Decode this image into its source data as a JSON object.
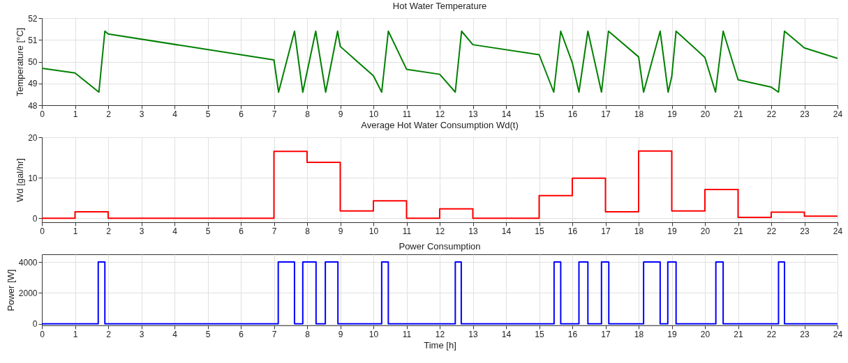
{
  "chart_data": [
    {
      "type": "line",
      "title": "Hot Water Temperature",
      "ylabel": "Temperature  [°C]",
      "xlim": [
        0,
        24
      ],
      "xticks": [
        0,
        1,
        2,
        3,
        4,
        5,
        6,
        7,
        8,
        9,
        10,
        11,
        12,
        13,
        14,
        15,
        16,
        17,
        18,
        19,
        20,
        21,
        22,
        23,
        24
      ],
      "ylim": [
        48,
        52
      ],
      "yticks": [
        48,
        49,
        50,
        51,
        52
      ],
      "grid": true,
      "series": [
        {
          "color": "#008000",
          "x": [
            0,
            1,
            1.72,
            1.9,
            2,
            7,
            7.14,
            7.62,
            7.87,
            8.26,
            8.56,
            8.92,
            9,
            10,
            10.25,
            10.45,
            11,
            12,
            12.47,
            12.66,
            13,
            15,
            15.44,
            15.65,
            16,
            16.2,
            16.47,
            16.88,
            17.09,
            18,
            18.15,
            18.65,
            18.89,
            19,
            19.13,
            20,
            20.32,
            20.55,
            21,
            22,
            22.22,
            22.4,
            23,
            24
          ],
          "values": [
            49.7,
            49.48,
            48.6,
            51.4,
            51.27,
            50.08,
            48.6,
            51.4,
            48.6,
            51.4,
            48.6,
            51.4,
            50.7,
            49.35,
            48.6,
            51.4,
            49.65,
            49.42,
            48.6,
            51.4,
            50.78,
            50.32,
            48.6,
            51.4,
            49.95,
            48.6,
            51.4,
            48.6,
            51.4,
            50.22,
            48.6,
            51.4,
            48.6,
            49.32,
            51.4,
            50.19,
            48.6,
            51.4,
            49.17,
            48.83,
            48.6,
            51.4,
            50.63,
            50.15
          ]
        }
      ]
    },
    {
      "type": "step",
      "title": "Average Hot Water Consumption Wd(t)",
      "ylabel": "Wd  [gal/hr]",
      "xlim": [
        0,
        24
      ],
      "xticks": [
        0,
        1,
        2,
        3,
        4,
        5,
        6,
        7,
        8,
        9,
        10,
        11,
        12,
        13,
        14,
        15,
        16,
        17,
        18,
        19,
        20,
        21,
        22,
        23,
        24
      ],
      "ylim": [
        -1,
        20
      ],
      "yticks": [
        0,
        10,
        20
      ],
      "grid": true,
      "series": [
        {
          "color": "#ff0000",
          "x": [
            0,
            1,
            2,
            3,
            4,
            5,
            6,
            7,
            8,
            9,
            10,
            11,
            12,
            13,
            14,
            15,
            16,
            17,
            18,
            19,
            20,
            21,
            22,
            23,
            24
          ],
          "values": [
            0,
            1.6,
            0,
            0,
            0,
            0,
            0,
            16.5,
            13.8,
            1.8,
            4.3,
            0,
            2.3,
            0,
            0,
            5.6,
            9.9,
            1.6,
            16.6,
            1.8,
            7.1,
            0.2,
            1.5,
            0.5,
            0.5
          ]
        }
      ]
    },
    {
      "type": "step",
      "title": "Power Consumption",
      "xlabel": "Time  [h]",
      "ylabel": "Power  [W]",
      "xlim": [
        0,
        24
      ],
      "xticks": [
        0,
        1,
        2,
        3,
        4,
        5,
        6,
        7,
        8,
        9,
        10,
        11,
        12,
        13,
        14,
        15,
        16,
        17,
        18,
        19,
        20,
        21,
        22,
        23,
        24
      ],
      "ylim": [
        -100,
        4500
      ],
      "yticks": [
        0,
        2000,
        4000
      ],
      "grid": true,
      "series": [
        {
          "color": "#0000ff",
          "x": [
            0,
            1.7,
            1.9,
            7.13,
            7.62,
            7.87,
            8.27,
            8.55,
            8.93,
            10.25,
            10.45,
            12.47,
            12.65,
            15.45,
            15.65,
            16.2,
            16.47,
            16.88,
            17.1,
            18.15,
            18.65,
            18.88,
            19.13,
            20.33,
            20.55,
            22.22,
            22.4,
            24
          ],
          "values": [
            0,
            4000,
            0,
            4000,
            0,
            4000,
            0,
            4000,
            0,
            4000,
            0,
            4000,
            0,
            4000,
            0,
            4000,
            0,
            4000,
            0,
            4000,
            0,
            4000,
            0,
            4000,
            0,
            4000,
            0,
            0
          ]
        }
      ]
    }
  ]
}
